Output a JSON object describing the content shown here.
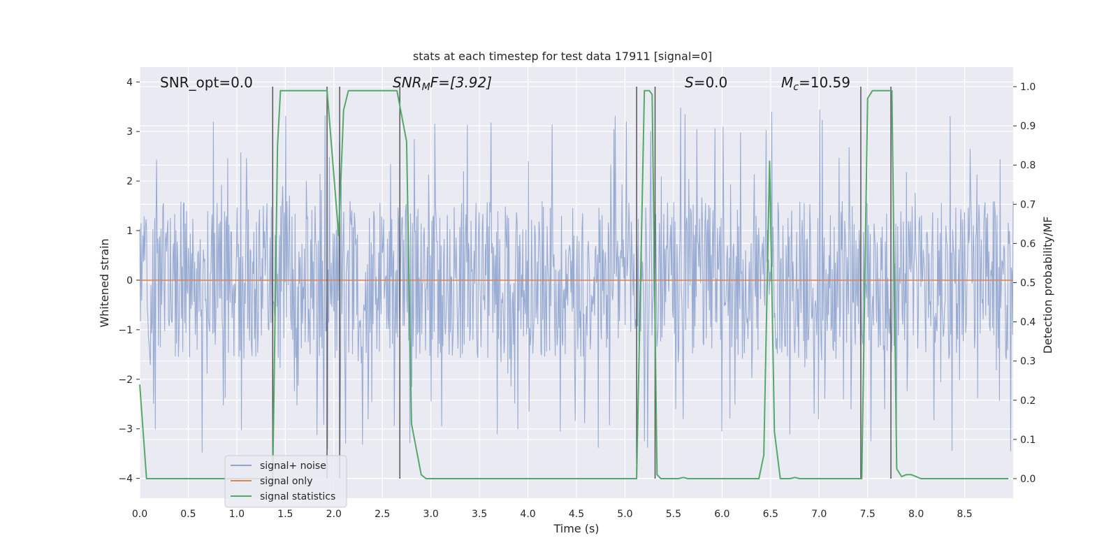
{
  "chart_data": {
    "type": "line",
    "title": "stats at each timestep for test data 17911 [signal=0]",
    "xlabel": "Time (s)",
    "ylabel": "Whitened strain",
    "y2label": "Detection probability/MF",
    "xlim": [
      0,
      9.0
    ],
    "ylim": [
      -4.4,
      4.3
    ],
    "y2lim": [
      -0.05,
      1.05
    ],
    "x_ticks": [
      "0.0",
      "0.5",
      "1.0",
      "1.5",
      "2.0",
      "2.5",
      "3.0",
      "3.5",
      "4.0",
      "4.5",
      "5.0",
      "5.5",
      "6.0",
      "6.5",
      "7.0",
      "7.5",
      "8.0",
      "8.5"
    ],
    "y_ticks": [
      "4",
      "3",
      "2",
      "1",
      "0",
      "−1",
      "−2",
      "−3",
      "−4"
    ],
    "y2_ticks": [
      "1.0",
      "0.9",
      "0.8",
      "0.7",
      "0.6",
      "0.5",
      "0.4",
      "0.3",
      "0.2",
      "0.1",
      "0.0"
    ],
    "annotations": {
      "snr_opt": "SNR_opt=0.0",
      "snr_mf_var": "SNR",
      "snr_mf_sub": "M",
      "snr_mf_tail": "F=[3.92]",
      "s_var": "S",
      "s_tail": "=0.0",
      "mc_var": "M",
      "mc_sub": "c",
      "mc_tail": "=10.59"
    },
    "legend": {
      "position": "lower-left",
      "entries": [
        {
          "name": "signal+ noise",
          "color": "#8fa4cf"
        },
        {
          "name": "signal only",
          "color": "#dd8452"
        },
        {
          "name": "signal statistics",
          "color": "#55a868"
        }
      ]
    },
    "series": [
      {
        "name": "signal+ noise",
        "note": "whitened strain, dense noise mostly within about ±1.6 with spikes up to about ±3.5",
        "axis": "left",
        "band": 1.6,
        "peak": 3.5
      },
      {
        "name": "signal only",
        "axis": "left",
        "x": [
          0,
          9.0
        ],
        "y": [
          0,
          0
        ]
      },
      {
        "name": "signal statistics",
        "axis": "right",
        "x": [
          0.0,
          0.07,
          0.2,
          0.5,
          1.0,
          1.37,
          1.42,
          1.45,
          1.93,
          2.05,
          2.1,
          2.15,
          2.65,
          2.75,
          2.8,
          2.9,
          2.95,
          3.5,
          5.12,
          5.2,
          5.25,
          5.28,
          5.33,
          5.37,
          5.45,
          5.55,
          5.6,
          5.65,
          5.7,
          6.0,
          6.38,
          6.43,
          6.49,
          6.54,
          6.6,
          6.7,
          6.75,
          6.8,
          7.0,
          7.44,
          7.5,
          7.55,
          7.6,
          7.75,
          7.8,
          7.85,
          7.9,
          7.95,
          8.05,
          8.5,
          8.95
        ],
        "y": [
          0.24,
          0.0,
          0.0,
          0.0,
          0.0,
          0.0,
          0.85,
          0.99,
          0.99,
          0.62,
          0.94,
          0.99,
          0.99,
          0.86,
          0.14,
          0.01,
          0.0,
          0.0,
          0.0,
          0.99,
          0.99,
          0.98,
          0.01,
          0.0,
          0.0,
          0.0,
          0.003,
          0.0,
          0.0,
          0.0,
          0.0,
          0.06,
          0.81,
          0.12,
          0.0,
          0.0,
          0.003,
          0.0,
          0.0,
          0.0,
          0.97,
          0.99,
          0.99,
          0.99,
          0.025,
          0.005,
          0.01,
          0.01,
          0.0,
          0.0,
          0.0
        ]
      }
    ],
    "vertical_markers": [
      1.37,
      1.93,
      2.06,
      2.68,
      5.12,
      5.31,
      7.43,
      7.74
    ]
  }
}
